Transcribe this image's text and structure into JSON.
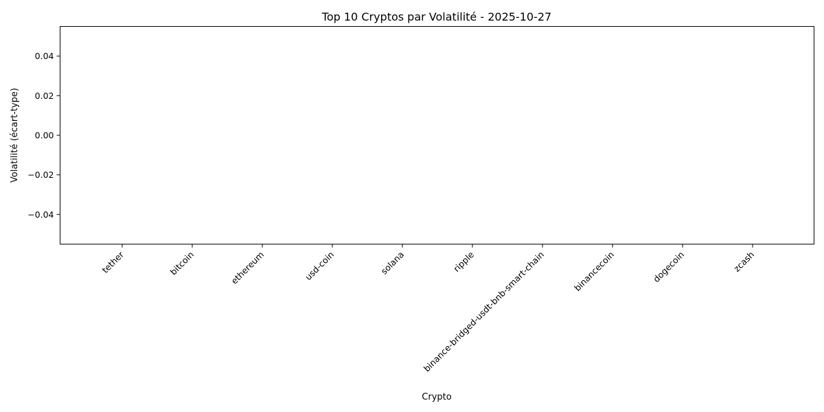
{
  "chart_data": {
    "type": "bar",
    "title": "Top 10 Cryptos par Volatilité - 2025-10-27",
    "xlabel": "Crypto",
    "ylabel": "Volatilité (écart-type)",
    "categories": [
      "tether",
      "bitcoin",
      "ethereum",
      "usd-coin",
      "solana",
      "ripple",
      "binance-bridged-usdt-bnb-smart-chain",
      "binancecoin",
      "dogecoin",
      "zcash"
    ],
    "values": [
      0,
      0,
      0,
      0,
      0,
      0,
      0,
      0,
      0,
      0
    ],
    "ylim": [
      -0.055,
      0.055
    ],
    "yticks": [
      -0.04,
      -0.02,
      0.0,
      0.02,
      0.04
    ],
    "ytick_labels": [
      "−0.04",
      "−0.02",
      "0.00",
      "0.02",
      "0.04"
    ],
    "grid": false,
    "legend": "none",
    "colors": {
      "axis": "#000000",
      "bar": "#1f77b4"
    }
  }
}
